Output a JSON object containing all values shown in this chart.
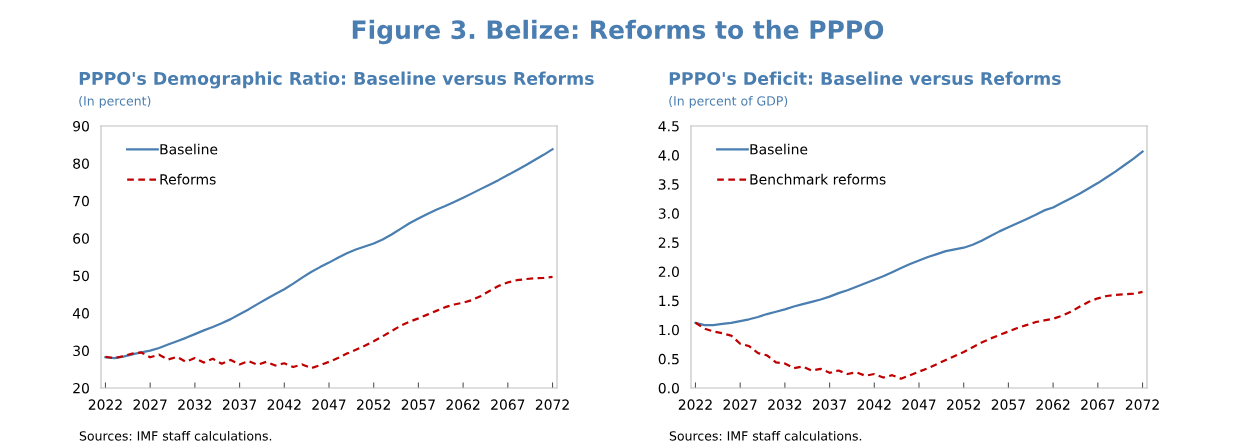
{
  "chart_data": [
    {
      "type": "line",
      "title": "PPPO's Demographic Ratio: Baseline versus Reforms",
      "subtitle": "(In percent)",
      "annotations": [
        "Figure 3. Belize: Reforms to the PPPO",
        "Sources: IMF staff calculations."
      ],
      "x": [
        2022,
        2023,
        2024,
        2025,
        2026,
        2027,
        2028,
        2029,
        2030,
        2031,
        2032,
        2033,
        2034,
        2035,
        2036,
        2037,
        2038,
        2039,
        2040,
        2041,
        2042,
        2043,
        2044,
        2045,
        2046,
        2047,
        2048,
        2049,
        2050,
        2051,
        2052,
        2053,
        2054,
        2055,
        2056,
        2057,
        2058,
        2059,
        2060,
        2061,
        2062,
        2063,
        2064,
        2065,
        2066,
        2067,
        2068,
        2069,
        2070,
        2071,
        2072
      ],
      "series": [
        {
          "name": "Baseline",
          "color": "#4a7eb0",
          "line_style": "solid",
          "values": [
            28.2,
            28.0,
            28.4,
            29.0,
            29.5,
            30.0,
            30.7,
            31.6,
            32.5,
            33.4,
            34.4,
            35.4,
            36.3,
            37.3,
            38.4,
            39.7,
            41.0,
            42.4,
            43.8,
            45.1,
            46.4,
            47.9,
            49.5,
            51.0,
            52.3,
            53.5,
            54.8,
            56.0,
            57.0,
            57.8,
            58.6,
            59.7,
            61.0,
            62.5,
            64.0,
            65.3,
            66.5,
            67.6,
            68.6,
            69.7,
            70.8,
            72.0,
            73.2,
            74.4,
            75.6,
            76.9,
            78.2,
            79.5,
            80.9,
            82.3,
            83.8
          ]
        },
        {
          "name": "Reforms",
          "color": "#c00000",
          "line_style": "dashed",
          "values": [
            28.3,
            28.0,
            28.5,
            29.2,
            29.5,
            28.2,
            28.9,
            27.6,
            28.3,
            27.0,
            28.0,
            26.8,
            27.8,
            26.5,
            27.5,
            26.3,
            27.2,
            26.2,
            27.0,
            26.0,
            26.6,
            25.6,
            26.3,
            25.3,
            26.1,
            27.0,
            28.0,
            29.2,
            30.2,
            31.3,
            32.5,
            33.8,
            35.2,
            36.6,
            37.7,
            38.6,
            39.6,
            40.6,
            41.6,
            42.3,
            42.8,
            43.5,
            44.6,
            46.0,
            47.3,
            48.2,
            48.8,
            49.1,
            49.3,
            49.4,
            49.7
          ]
        }
      ],
      "xlim": [
        2021.5,
        2072.5
      ],
      "xticks": [
        2022,
        2027,
        2032,
        2037,
        2042,
        2047,
        2052,
        2057,
        2062,
        2067,
        2072
      ],
      "ylim": [
        20,
        90
      ],
      "yticks": [
        20,
        30,
        40,
        50,
        60,
        70,
        80,
        90
      ],
      "grid": false,
      "legend": "top left",
      "marker": "none"
    },
    {
      "type": "line",
      "title": "PPPO's Deficit: Baseline versus Reforms",
      "subtitle": "(In percent of GDP)",
      "annotations": [
        "Sources: IMF staff calculations."
      ],
      "x": [
        2022,
        2023,
        2024,
        2025,
        2026,
        2027,
        2028,
        2029,
        2030,
        2031,
        2032,
        2033,
        2034,
        2035,
        2036,
        2037,
        2038,
        2039,
        2040,
        2041,
        2042,
        2043,
        2044,
        2045,
        2046,
        2047,
        2048,
        2049,
        2050,
        2051,
        2052,
        2053,
        2054,
        2055,
        2056,
        2057,
        2058,
        2059,
        2060,
        2061,
        2062,
        2063,
        2064,
        2065,
        2066,
        2067,
        2068,
        2069,
        2070,
        2071,
        2072
      ],
      "series": [
        {
          "name": "Baseline",
          "color": "#4a7eb0",
          "line_style": "solid",
          "values": [
            1.12,
            1.08,
            1.08,
            1.1,
            1.12,
            1.15,
            1.18,
            1.22,
            1.27,
            1.31,
            1.35,
            1.4,
            1.44,
            1.48,
            1.52,
            1.57,
            1.63,
            1.68,
            1.74,
            1.8,
            1.86,
            1.92,
            1.99,
            2.06,
            2.13,
            2.19,
            2.25,
            2.3,
            2.35,
            2.38,
            2.41,
            2.46,
            2.53,
            2.61,
            2.69,
            2.76,
            2.83,
            2.9,
            2.97,
            3.05,
            3.1,
            3.18,
            3.26,
            3.34,
            3.43,
            3.52,
            3.62,
            3.72,
            3.83,
            3.94,
            4.06
          ]
        },
        {
          "name": "Benchmark reforms",
          "color": "#c00000",
          "line_style": "dashed",
          "values": [
            1.12,
            1.02,
            0.97,
            0.94,
            0.9,
            0.76,
            0.72,
            0.6,
            0.56,
            0.44,
            0.42,
            0.34,
            0.37,
            0.3,
            0.33,
            0.26,
            0.3,
            0.24,
            0.27,
            0.21,
            0.24,
            0.18,
            0.22,
            0.16,
            0.22,
            0.28,
            0.34,
            0.41,
            0.48,
            0.55,
            0.62,
            0.7,
            0.78,
            0.85,
            0.91,
            0.97,
            1.03,
            1.08,
            1.13,
            1.16,
            1.19,
            1.24,
            1.31,
            1.4,
            1.48,
            1.54,
            1.58,
            1.6,
            1.61,
            1.62,
            1.65
          ]
        }
      ],
      "xlim": [
        2021.5,
        2072.5
      ],
      "xticks": [
        2022,
        2027,
        2032,
        2037,
        2042,
        2047,
        2052,
        2057,
        2062,
        2067,
        2072
      ],
      "ylim": [
        0,
        4.5
      ],
      "yticks": [
        {
          "value": 0,
          "label": "0.0"
        },
        {
          "value": 0.5,
          "label": "0.5"
        },
        {
          "value": 1,
          "label": "1.0"
        },
        {
          "value": 1.5,
          "label": "1.5"
        },
        {
          "value": 2,
          "label": "2.0"
        },
        {
          "value": 2.5,
          "label": "2.5"
        },
        {
          "value": 3,
          "label": "3.0"
        },
        {
          "value": 3.5,
          "label": "3.5"
        },
        {
          "value": 4,
          "label": "4.0"
        },
        {
          "value": 4.5,
          "label": "4.5"
        }
      ],
      "grid": false,
      "legend": "top left",
      "marker": "none"
    }
  ]
}
